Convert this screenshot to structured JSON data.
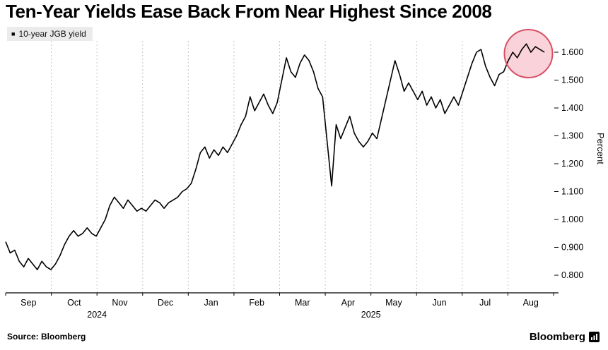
{
  "header": {
    "title": "Ten-Year Yields Ease Back From Near Highest Since 2008"
  },
  "legend": {
    "marker": "■",
    "label": "10-year JGB yield"
  },
  "axes": {
    "y_label": "Percent"
  },
  "footer": {
    "source": "Source: Bloomberg",
    "brand": "Bloomberg"
  },
  "chart_data": {
    "type": "line",
    "title": "Ten-Year Yields Ease Back From Near Highest Since 2008",
    "ylabel": "Percent",
    "series_name": "10-year JGB yield",
    "line_color": "#000000",
    "grid_color": "#c4c4c4",
    "x_months": [
      "Sep",
      "Oct",
      "Nov",
      "Dec",
      "Jan",
      "Feb",
      "Mar",
      "Apr",
      "May",
      "Jun",
      "Jul",
      "Aug"
    ],
    "year_labels": [
      {
        "label": "2024",
        "start_month": 0,
        "end_month": 4
      },
      {
        "label": "2025",
        "start_month": 4,
        "end_month": 12
      }
    ],
    "y_ticks": [
      0.8,
      0.9,
      1.0,
      1.1,
      1.2,
      1.3,
      1.4,
      1.5,
      1.6
    ],
    "ylim": [
      0.8,
      1.6
    ],
    "x_range": "Sep 2024 - Aug 2025",
    "values": [
      0.92,
      0.88,
      0.89,
      0.85,
      0.83,
      0.86,
      0.84,
      0.82,
      0.85,
      0.83,
      0.82,
      0.84,
      0.87,
      0.91,
      0.94,
      0.96,
      0.94,
      0.95,
      0.97,
      0.95,
      0.94,
      0.97,
      1.0,
      1.05,
      1.08,
      1.06,
      1.04,
      1.07,
      1.05,
      1.03,
      1.04,
      1.03,
      1.05,
      1.07,
      1.06,
      1.04,
      1.06,
      1.07,
      1.08,
      1.1,
      1.11,
      1.13,
      1.18,
      1.24,
      1.26,
      1.22,
      1.25,
      1.23,
      1.26,
      1.24,
      1.27,
      1.3,
      1.34,
      1.37,
      1.44,
      1.39,
      1.42,
      1.45,
      1.41,
      1.38,
      1.42,
      1.5,
      1.58,
      1.53,
      1.51,
      1.56,
      1.59,
      1.57,
      1.53,
      1.47,
      1.44,
      1.28,
      1.12,
      1.34,
      1.29,
      1.33,
      1.37,
      1.31,
      1.28,
      1.26,
      1.28,
      1.31,
      1.29,
      1.36,
      1.43,
      1.5,
      1.57,
      1.52,
      1.46,
      1.49,
      1.46,
      1.43,
      1.46,
      1.41,
      1.44,
      1.4,
      1.43,
      1.38,
      1.41,
      1.44,
      1.41,
      1.46,
      1.51,
      1.56,
      1.6,
      1.61,
      1.55,
      1.51,
      1.48,
      1.52,
      1.53,
      1.57,
      1.6,
      1.58,
      1.61,
      1.63,
      1.6,
      1.62,
      1.61,
      1.6
    ],
    "highlight_circle": {
      "month_x": 11.45,
      "value": 1.595,
      "radius_px": 34,
      "fill": "#f6aebc",
      "stroke": "#d94f63"
    }
  }
}
